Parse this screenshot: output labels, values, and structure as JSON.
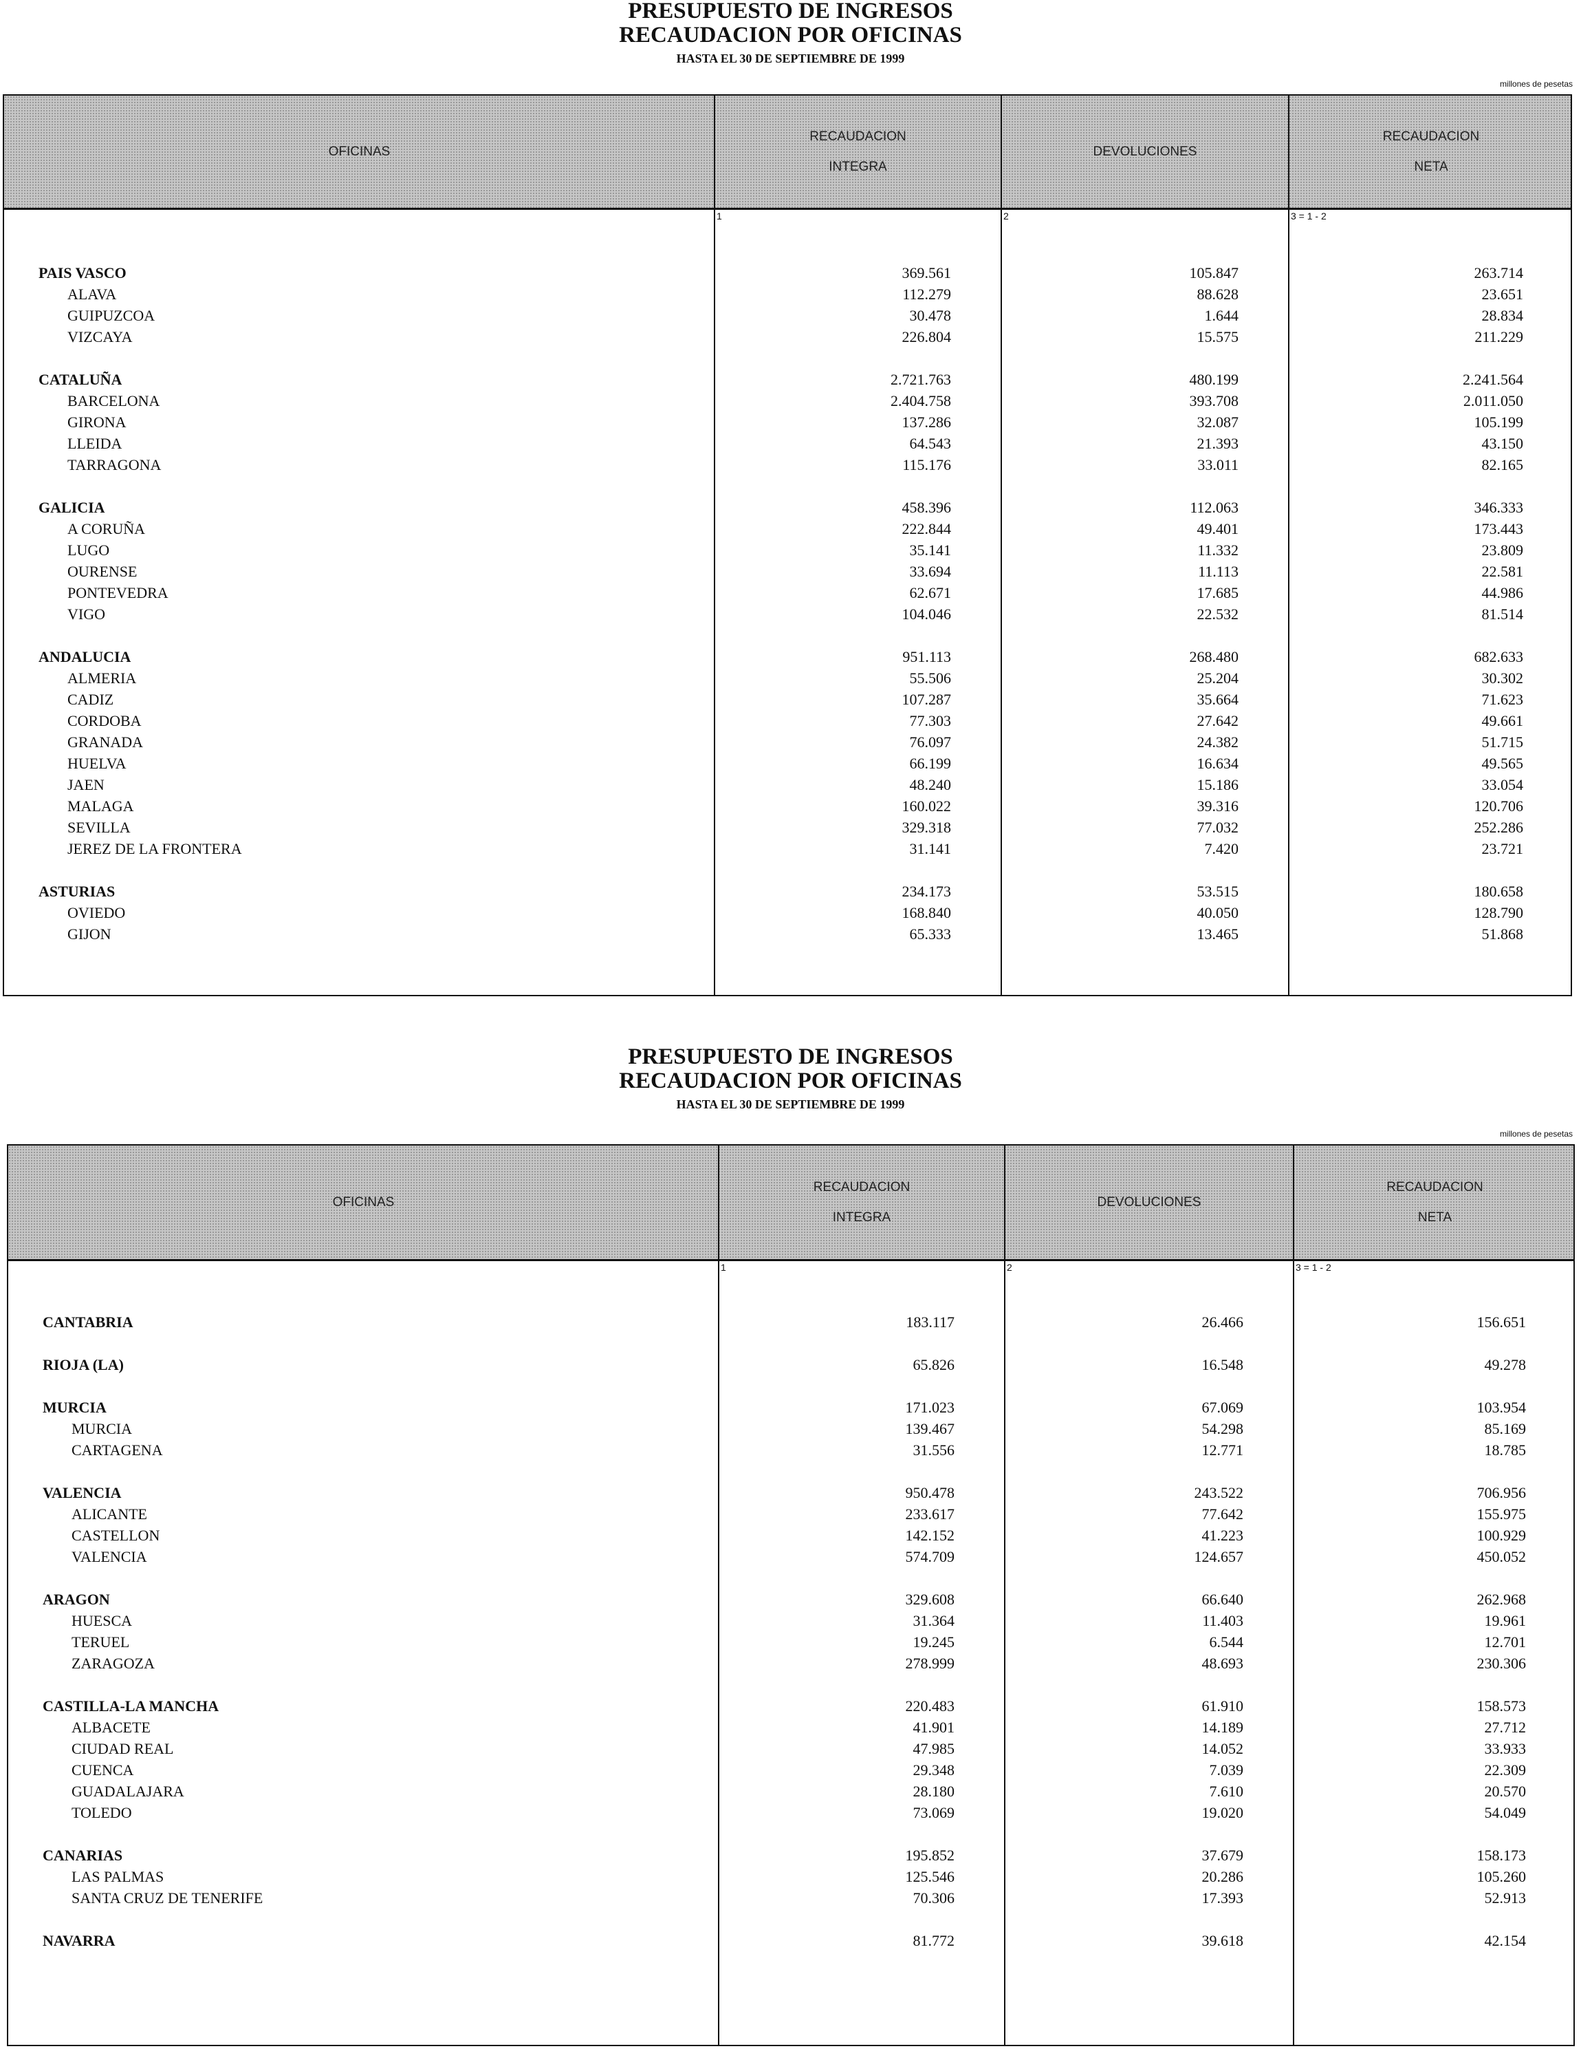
{
  "pages": [
    {
      "title_line1": "PRESUPUESTO DE INGRESOS",
      "title_line2": "RECAUDACION POR OFICINAS",
      "title_line3": "HASTA EL 30 DE SEPTIEMBRE DE 1999",
      "unit": "millones de pesetas",
      "headers": {
        "oficinas": "OFICINAS",
        "integra_1": "RECAUDACION",
        "integra_2": "INTEGRA",
        "devoluciones": "DEVOLUCIONES",
        "neta_1": "RECAUDACION",
        "neta_2": "NETA"
      },
      "column_numbers": [
        "1",
        "2",
        "3 = 1 - 2"
      ],
      "groups": [
        {
          "rows": [
            {
              "name": "PAIS VASCO",
              "level": "region",
              "integra": "369.561",
              "devoluciones": "105.847",
              "neta": "263.714"
            },
            {
              "name": "ALAVA",
              "level": "office",
              "integra": "112.279",
              "devoluciones": "88.628",
              "neta": "23.651"
            },
            {
              "name": "GUIPUZCOA",
              "level": "office",
              "integra": "30.478",
              "devoluciones": "1.644",
              "neta": "28.834"
            },
            {
              "name": "VIZCAYA",
              "level": "office",
              "integra": "226.804",
              "devoluciones": "15.575",
              "neta": "211.229"
            }
          ]
        },
        {
          "rows": [
            {
              "name": "CATALUÑA",
              "level": "region",
              "integra": "2.721.763",
              "devoluciones": "480.199",
              "neta": "2.241.564"
            },
            {
              "name": "BARCELONA",
              "level": "office",
              "integra": "2.404.758",
              "devoluciones": "393.708",
              "neta": "2.011.050"
            },
            {
              "name": "GIRONA",
              "level": "office",
              "integra": "137.286",
              "devoluciones": "32.087",
              "neta": "105.199"
            },
            {
              "name": "LLEIDA",
              "level": "office",
              "integra": "64.543",
              "devoluciones": "21.393",
              "neta": "43.150"
            },
            {
              "name": "TARRAGONA",
              "level": "office",
              "integra": "115.176",
              "devoluciones": "33.011",
              "neta": "82.165"
            }
          ]
        },
        {
          "rows": [
            {
              "name": "GALICIA",
              "level": "region",
              "integra": "458.396",
              "devoluciones": "112.063",
              "neta": "346.333"
            },
            {
              "name": "A CORUÑA",
              "level": "office",
              "integra": "222.844",
              "devoluciones": "49.401",
              "neta": "173.443"
            },
            {
              "name": "LUGO",
              "level": "office",
              "integra": "35.141",
              "devoluciones": "11.332",
              "neta": "23.809"
            },
            {
              "name": "OURENSE",
              "level": "office",
              "integra": "33.694",
              "devoluciones": "11.113",
              "neta": "22.581"
            },
            {
              "name": "PONTEVEDRA",
              "level": "office",
              "integra": "62.671",
              "devoluciones": "17.685",
              "neta": "44.986"
            },
            {
              "name": "VIGO",
              "level": "office",
              "integra": "104.046",
              "devoluciones": "22.532",
              "neta": "81.514"
            }
          ]
        },
        {
          "rows": [
            {
              "name": "ANDALUCIA",
              "level": "region",
              "integra": "951.113",
              "devoluciones": "268.480",
              "neta": "682.633"
            },
            {
              "name": "ALMERIA",
              "level": "office",
              "integra": "55.506",
              "devoluciones": "25.204",
              "neta": "30.302"
            },
            {
              "name": "CADIZ",
              "level": "office",
              "integra": "107.287",
              "devoluciones": "35.664",
              "neta": "71.623"
            },
            {
              "name": "CORDOBA",
              "level": "office",
              "integra": "77.303",
              "devoluciones": "27.642",
              "neta": "49.661"
            },
            {
              "name": "GRANADA",
              "level": "office",
              "integra": "76.097",
              "devoluciones": "24.382",
              "neta": "51.715"
            },
            {
              "name": "HUELVA",
              "level": "office",
              "integra": "66.199",
              "devoluciones": "16.634",
              "neta": "49.565"
            },
            {
              "name": "JAEN",
              "level": "office",
              "integra": "48.240",
              "devoluciones": "15.186",
              "neta": "33.054"
            },
            {
              "name": "MALAGA",
              "level": "office",
              "integra": "160.022",
              "devoluciones": "39.316",
              "neta": "120.706"
            },
            {
              "name": "SEVILLA",
              "level": "office",
              "integra": "329.318",
              "devoluciones": "77.032",
              "neta": "252.286"
            },
            {
              "name": "JEREZ DE LA FRONTERA",
              "level": "office",
              "integra": "31.141",
              "devoluciones": "7.420",
              "neta": "23.721"
            }
          ]
        },
        {
          "rows": [
            {
              "name": "ASTURIAS",
              "level": "region",
              "integra": "234.173",
              "devoluciones": "53.515",
              "neta": "180.658"
            },
            {
              "name": "OVIEDO",
              "level": "office",
              "integra": "168.840",
              "devoluciones": "40.050",
              "neta": "128.790"
            },
            {
              "name": "GIJON",
              "level": "office",
              "integra": "65.333",
              "devoluciones": "13.465",
              "neta": "51.868"
            }
          ]
        }
      ]
    },
    {
      "title_line1": "PRESUPUESTO DE INGRESOS",
      "title_line2": "RECAUDACION POR OFICINAS",
      "title_line3": "HASTA EL 30 DE SEPTIEMBRE DE 1999",
      "unit": "millones de pesetas",
      "headers": {
        "oficinas": "OFICINAS",
        "integra_1": "RECAUDACION",
        "integra_2": "INTEGRA",
        "devoluciones": "DEVOLUCIONES",
        "neta_1": "RECAUDACION",
        "neta_2": "NETA"
      },
      "column_numbers": [
        "1",
        "2",
        "3 = 1 - 2"
      ],
      "groups": [
        {
          "rows": [
            {
              "name": "CANTABRIA",
              "level": "region",
              "integra": "183.117",
              "devoluciones": "26.466",
              "neta": "156.651"
            }
          ]
        },
        {
          "rows": [
            {
              "name": "RIOJA (LA)",
              "level": "region",
              "integra": "65.826",
              "devoluciones": "16.548",
              "neta": "49.278"
            }
          ]
        },
        {
          "rows": [
            {
              "name": "MURCIA",
              "level": "region",
              "integra": "171.023",
              "devoluciones": "67.069",
              "neta": "103.954"
            },
            {
              "name": "MURCIA",
              "level": "office",
              "integra": "139.467",
              "devoluciones": "54.298",
              "neta": "85.169"
            },
            {
              "name": "CARTAGENA",
              "level": "office",
              "integra": "31.556",
              "devoluciones": "12.771",
              "neta": "18.785"
            }
          ]
        },
        {
          "rows": [
            {
              "name": "VALENCIA",
              "level": "region",
              "integra": "950.478",
              "devoluciones": "243.522",
              "neta": "706.956"
            },
            {
              "name": "ALICANTE",
              "level": "office",
              "integra": "233.617",
              "devoluciones": "77.642",
              "neta": "155.975"
            },
            {
              "name": "CASTELLON",
              "level": "office",
              "integra": "142.152",
              "devoluciones": "41.223",
              "neta": "100.929"
            },
            {
              "name": "VALENCIA",
              "level": "office",
              "integra": "574.709",
              "devoluciones": "124.657",
              "neta": "450.052"
            }
          ]
        },
        {
          "rows": [
            {
              "name": "ARAGON",
              "level": "region",
              "integra": "329.608",
              "devoluciones": "66.640",
              "neta": "262.968"
            },
            {
              "name": "HUESCA",
              "level": "office",
              "integra": "31.364",
              "devoluciones": "11.403",
              "neta": "19.961"
            },
            {
              "name": "TERUEL",
              "level": "office",
              "integra": "19.245",
              "devoluciones": "6.544",
              "neta": "12.701"
            },
            {
              "name": "ZARAGOZA",
              "level": "office",
              "integra": "278.999",
              "devoluciones": "48.693",
              "neta": "230.306"
            }
          ]
        },
        {
          "rows": [
            {
              "name": "CASTILLA-LA MANCHA",
              "level": "region",
              "integra": "220.483",
              "devoluciones": "61.910",
              "neta": "158.573"
            },
            {
              "name": "ALBACETE",
              "level": "office",
              "integra": "41.901",
              "devoluciones": "14.189",
              "neta": "27.712"
            },
            {
              "name": "CIUDAD REAL",
              "level": "office",
              "integra": "47.985",
              "devoluciones": "14.052",
              "neta": "33.933"
            },
            {
              "name": "CUENCA",
              "level": "office",
              "integra": "29.348",
              "devoluciones": "7.039",
              "neta": "22.309"
            },
            {
              "name": "GUADALAJARA",
              "level": "office",
              "integra": "28.180",
              "devoluciones": "7.610",
              "neta": "20.570"
            },
            {
              "name": "TOLEDO",
              "level": "office",
              "integra": "73.069",
              "devoluciones": "19.020",
              "neta": "54.049"
            }
          ]
        },
        {
          "rows": [
            {
              "name": "CANARIAS",
              "level": "region",
              "integra": "195.852",
              "devoluciones": "37.679",
              "neta": "158.173"
            },
            {
              "name": "LAS PALMAS",
              "level": "office",
              "integra": "125.546",
              "devoluciones": "20.286",
              "neta": "105.260"
            },
            {
              "name": "SANTA CRUZ DE TENERIFE",
              "level": "office",
              "integra": "70.306",
              "devoluciones": "17.393",
              "neta": "52.913"
            }
          ]
        },
        {
          "rows": [
            {
              "name": "NAVARRA",
              "level": "region",
              "integra": "81.772",
              "devoluciones": "39.618",
              "neta": "42.154"
            }
          ]
        }
      ]
    }
  ]
}
